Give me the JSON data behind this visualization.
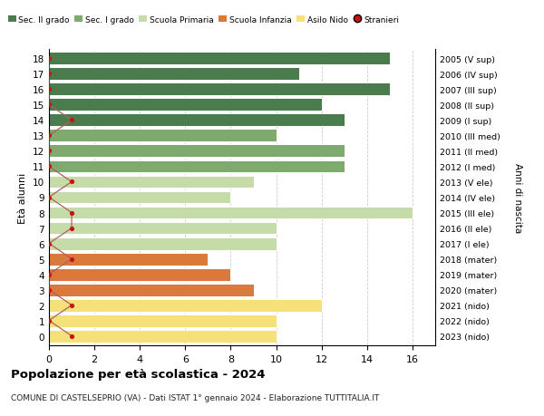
{
  "ages": [
    18,
    17,
    16,
    15,
    14,
    13,
    12,
    11,
    10,
    9,
    8,
    7,
    6,
    5,
    4,
    3,
    2,
    1,
    0
  ],
  "right_labels": [
    "2005 (V sup)",
    "2006 (IV sup)",
    "2007 (III sup)",
    "2008 (II sup)",
    "2009 (I sup)",
    "2010 (III med)",
    "2011 (II med)",
    "2012 (I med)",
    "2013 (V ele)",
    "2014 (IV ele)",
    "2015 (III ele)",
    "2016 (II ele)",
    "2017 (I ele)",
    "2018 (mater)",
    "2019 (mater)",
    "2020 (mater)",
    "2021 (nido)",
    "2022 (nido)",
    "2023 (nido)"
  ],
  "bar_values": [
    15,
    11,
    15,
    12,
    13,
    10,
    13,
    13,
    9,
    8,
    16,
    10,
    10,
    7,
    8,
    9,
    12,
    10,
    10
  ],
  "bar_colors": [
    "#4a7c4e",
    "#4a7c4e",
    "#4a7c4e",
    "#4a7c4e",
    "#4a7c4e",
    "#7faa6d",
    "#7faa6d",
    "#7faa6d",
    "#c5dca8",
    "#c5dca8",
    "#c5dca8",
    "#c5dca8",
    "#c5dca8",
    "#d9793a",
    "#d9793a",
    "#d9793a",
    "#f5e07a",
    "#f5e07a",
    "#f5e07a"
  ],
  "stranieri_values": [
    0,
    0,
    0,
    0,
    1,
    0,
    0,
    0,
    1,
    0,
    1,
    1,
    0,
    1,
    0,
    0,
    1,
    0,
    1
  ],
  "xlim": [
    0,
    17
  ],
  "xticks": [
    0,
    2,
    4,
    6,
    8,
    10,
    12,
    14,
    16
  ],
  "title": "Popolazione per età scolastica - 2024",
  "subtitle": "COMUNE DI CASTELSEPRIO (VA) - Dati ISTAT 1° gennaio 2024 - Elaborazione TUTTITALIA.IT",
  "ylabel": "Età alunni",
  "right_ylabel": "Anni di nascita",
  "legend_labels": [
    "Sec. II grado",
    "Sec. I grado",
    "Scuola Primaria",
    "Scuola Infanzia",
    "Asilo Nido",
    "Stranieri"
  ],
  "legend_colors": [
    "#4a7c4e",
    "#7faa6d",
    "#c5dca8",
    "#d9793a",
    "#f5e07a",
    "#cc1111"
  ],
  "bg_color": "#ffffff",
  "bar_edge_color": "#ffffff",
  "grid_color": "#cccccc",
  "stranieri_color": "#cc1111",
  "stranieri_line_color": "#b06060"
}
